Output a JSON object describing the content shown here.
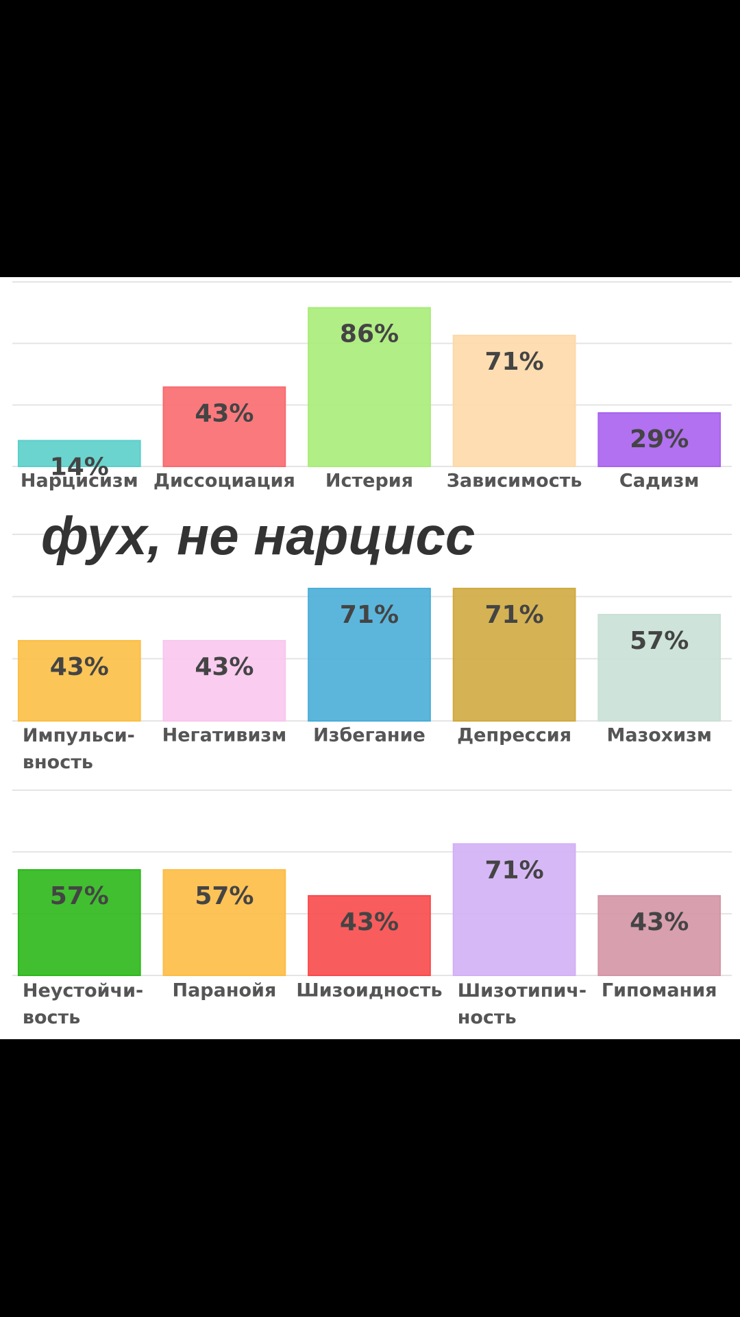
{
  "caption": "фух, не нарцисс",
  "chart_data": [
    {
      "type": "bar",
      "categories": [
        "Нарцисизм",
        "Диссоциация",
        "Истерия",
        "Зависимость",
        "Садизм"
      ],
      "values": [
        14,
        43,
        86,
        71,
        29
      ],
      "value_labels": [
        "14%",
        "43%",
        "86%",
        "71%",
        "29%"
      ],
      "colors": [
        "#5ccfca",
        "#f86a6e",
        "#a8ec78",
        "#fdd9a8",
        "#a962ee"
      ],
      "ylim": [
        0,
        100
      ],
      "yticks": [
        0,
        33.3,
        66.7,
        100
      ],
      "grid": true
    },
    {
      "type": "bar",
      "categories": [
        "Импульси-\nвность",
        "Негативизм",
        "Избегание",
        "Депрессия",
        "Мазохизм"
      ],
      "values": [
        43,
        43,
        71,
        71,
        57
      ],
      "value_labels": [
        "43%",
        "43%",
        "71%",
        "71%",
        "57%"
      ],
      "colors": [
        "#fbbf45",
        "#f9c6ee",
        "#4aaed8",
        "#d0aa40",
        "#c9e0d5"
      ],
      "ylim": [
        0,
        100
      ],
      "yticks": [
        0,
        33.3,
        66.7,
        100
      ],
      "grid": true
    },
    {
      "type": "bar",
      "categories": [
        "Неустойчи-\nвость",
        "Паранойя",
        "Шизоидность",
        "Шизотипич-\nность",
        "Гипомания"
      ],
      "values": [
        57,
        57,
        43,
        71,
        43
      ],
      "value_labels": [
        "57%",
        "57%",
        "43%",
        "71%",
        "43%"
      ],
      "colors": [
        "#2cb81a",
        "#fdbd45",
        "#f84a4a",
        "#d3b0f5",
        "#d495a6"
      ],
      "ylim": [
        0,
        100
      ],
      "yticks": [
        0,
        33.3,
        66.7,
        100
      ],
      "grid": true
    }
  ]
}
